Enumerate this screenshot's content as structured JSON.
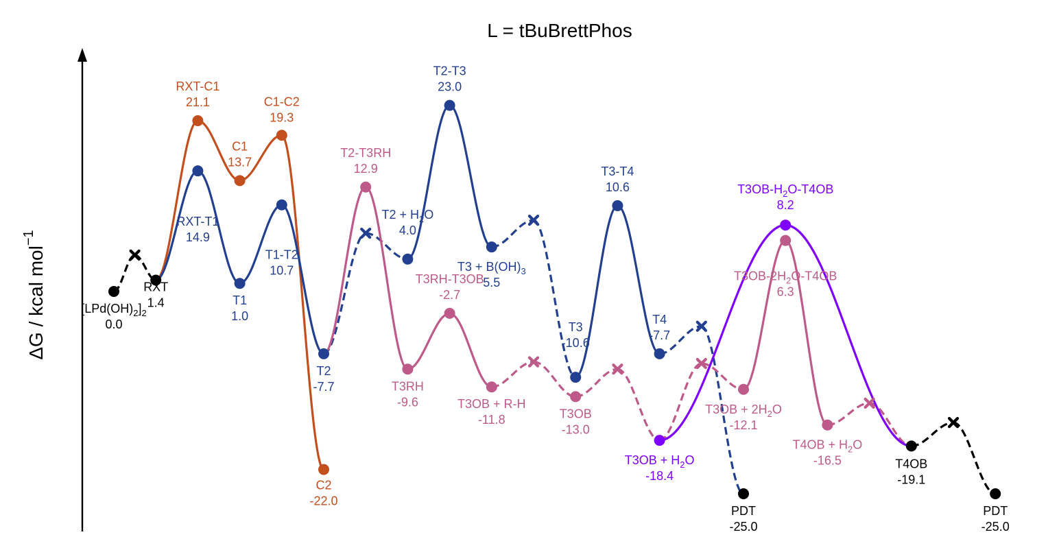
{
  "chart_data": {
    "type": "line",
    "title": "L = tBuBrettPhos",
    "ylabel": "ΔG / kcal mol",
    "ylabel_sup": "−1",
    "xlabel": "",
    "ylim": [
      -27,
      30
    ],
    "grid": false,
    "colors": {
      "black": "#000000",
      "orange": "#c34f1e",
      "blue": "#22408f",
      "pink": "#bd5a89",
      "purple": "#7f00ff"
    },
    "points": [
      {
        "id": "LPdOH",
        "x": 0,
        "y": 0.0,
        "color": "black",
        "marker": "circle",
        "name": "[LPd(OH)",
        "sub": "2",
        "tail": "]",
        "tail_sub": "2",
        "value": "0.0"
      },
      {
        "id": "B1",
        "x": 0.5,
        "y": 4.5,
        "color": "black",
        "marker": "x"
      },
      {
        "id": "RXT",
        "x": 1,
        "y": 1.4,
        "color": "black",
        "marker": "circle",
        "name": "RXT",
        "value": "1.4"
      },
      {
        "id": "RXT-C1",
        "x": 2,
        "y": 21.1,
        "color": "orange",
        "marker": "circle",
        "name": "RXT-C1",
        "value": "21.1"
      },
      {
        "id": "C1",
        "x": 3,
        "y": 13.7,
        "color": "orange",
        "marker": "circle",
        "name": "C1",
        "value": "13.7"
      },
      {
        "id": "C1-C2",
        "x": 4,
        "y": 19.3,
        "color": "orange",
        "marker": "circle",
        "name": "C1-C2",
        "value": "19.3"
      },
      {
        "id": "C2",
        "x": 5,
        "y": -22.0,
        "color": "orange",
        "marker": "circle",
        "name": "C2",
        "value": "-22.0"
      },
      {
        "id": "RXT-T1",
        "x": 2,
        "y": 14.9,
        "color": "blue",
        "marker": "circle",
        "name": "RXT-T1",
        "value": "14.9"
      },
      {
        "id": "T1",
        "x": 3,
        "y": 1.0,
        "color": "blue",
        "marker": "circle",
        "name": "T1",
        "value": "1.0"
      },
      {
        "id": "T1-T2",
        "x": 4,
        "y": 10.7,
        "color": "blue",
        "marker": "circle",
        "name": "T1-T2",
        "value": "10.7"
      },
      {
        "id": "T2",
        "x": 5,
        "y": -7.7,
        "color": "blue",
        "marker": "circle",
        "name": "T2",
        "value": "-7.7"
      },
      {
        "id": "B2",
        "x": 6,
        "y": 7.2,
        "color": "blue",
        "marker": "x"
      },
      {
        "id": "T2H2O",
        "x": 7,
        "y": 4.0,
        "color": "blue",
        "marker": "circle",
        "name": "T2 + H",
        "sub": "2",
        "tail": "O",
        "value": "4.0"
      },
      {
        "id": "T2-T3",
        "x": 8,
        "y": 23.0,
        "color": "blue",
        "marker": "circle",
        "name": "T2-T3",
        "value": "23.0"
      },
      {
        "id": "T3BOH",
        "x": 9,
        "y": 5.5,
        "color": "blue",
        "marker": "circle",
        "name": "T3 + B(OH)",
        "sub": "3",
        "value": "5.5"
      },
      {
        "id": "B3",
        "x": 10,
        "y": 8.8,
        "color": "blue",
        "marker": "x"
      },
      {
        "id": "T3",
        "x": 11,
        "y": -10.6,
        "color": "blue",
        "marker": "circle",
        "name": "T3",
        "value": "-10.6"
      },
      {
        "id": "T3-T4",
        "x": 12,
        "y": 10.6,
        "color": "blue",
        "marker": "circle",
        "name": "T3-T4",
        "value": "10.6"
      },
      {
        "id": "T4",
        "x": 13,
        "y": -7.7,
        "color": "blue",
        "marker": "circle",
        "name": "T4",
        "value": "-7.7"
      },
      {
        "id": "B4",
        "x": 14,
        "y": -4.3,
        "color": "blue",
        "marker": "x"
      },
      {
        "id": "PDT1",
        "x": 15,
        "y": -25.0,
        "color": "black",
        "marker": "circle",
        "name": "PDT",
        "value": "-25.0"
      },
      {
        "id": "T2-T3RH",
        "x": 6,
        "y": 12.9,
        "color": "pink",
        "marker": "circle",
        "name": "T2-T3RH",
        "value": "12.9"
      },
      {
        "id": "T3RH",
        "x": 7,
        "y": -9.6,
        "color": "pink",
        "marker": "circle",
        "name": "T3RH",
        "value": "-9.6"
      },
      {
        "id": "T3RH-T3OB",
        "x": 8,
        "y": -2.7,
        "color": "pink",
        "marker": "circle",
        "name": "T3RH-T3OB",
        "value": "-2.7"
      },
      {
        "id": "T3OBRH",
        "x": 9,
        "y": -11.8,
        "color": "pink",
        "marker": "circle",
        "name": "T3OB + R-H",
        "value": "-11.8"
      },
      {
        "id": "B5",
        "x": 10,
        "y": -8.7,
        "color": "pink",
        "marker": "x"
      },
      {
        "id": "T3OB",
        "x": 11,
        "y": -13.0,
        "color": "pink",
        "marker": "circle",
        "name": "T3OB",
        "value": "-13.0"
      },
      {
        "id": "B6",
        "x": 12,
        "y": -9.6,
        "color": "pink",
        "marker": "x"
      },
      {
        "id": "T3OBH2O",
        "x": 13,
        "y": -18.4,
        "color": "purple",
        "marker": "circle",
        "name": "T3OB + H",
        "sub": "2",
        "tail": "O",
        "value": "-18.4"
      },
      {
        "id": "B7",
        "x": 14,
        "y": -8.9,
        "color": "pink",
        "marker": "x"
      },
      {
        "id": "T3OB2H2O",
        "x": 15,
        "y": -12.1,
        "color": "pink",
        "marker": "circle",
        "name": "T3OB + 2H",
        "sub": "2",
        "tail": "O",
        "value": "-12.1"
      },
      {
        "id": "T3OB-2H2O-T4OB",
        "x": 16,
        "y": 6.3,
        "color": "pink",
        "marker": "circle",
        "name": "T3OB-2H",
        "sub": "2",
        "tail": "O-T4OB",
        "value": "6.3"
      },
      {
        "id": "T3OB-H2O-T4OB",
        "x": 16,
        "y": 8.2,
        "color": "purple",
        "marker": "circle",
        "name": "T3OB-H",
        "sub": "2",
        "tail": "O-T4OB",
        "value": "8.2"
      },
      {
        "id": "T4OBH2O",
        "x": 17,
        "y": -16.5,
        "color": "pink",
        "marker": "circle",
        "name": "T4OB + H",
        "sub": "2",
        "tail": "O",
        "value": "-16.5"
      },
      {
        "id": "B8",
        "x": 18,
        "y": -13.8,
        "color": "pink",
        "marker": "x"
      },
      {
        "id": "T4OB",
        "x": 19,
        "y": -19.1,
        "color": "black",
        "marker": "circle",
        "name": "T4OB",
        "value": "-19.1"
      },
      {
        "id": "B9",
        "x": 20,
        "y": -16.2,
        "color": "black",
        "marker": "x"
      },
      {
        "id": "PDT2",
        "x": 21,
        "y": -25.0,
        "color": "black",
        "marker": "circle",
        "name": "PDT",
        "value": "-25.0"
      }
    ],
    "segments": [
      {
        "from": "LPdOH",
        "to": "B1",
        "color": "black",
        "dash": true
      },
      {
        "from": "B1",
        "to": "RXT",
        "color": "black",
        "dash": true
      },
      {
        "from": "RXT",
        "to": "RXT-C1",
        "color": "orange",
        "dash": false
      },
      {
        "from": "RXT-C1",
        "to": "C1",
        "color": "orange",
        "dash": false
      },
      {
        "from": "C1",
        "to": "C1-C2",
        "color": "orange",
        "dash": false
      },
      {
        "from": "C1-C2",
        "to": "C2",
        "color": "orange",
        "dash": false
      },
      {
        "from": "RXT",
        "to": "RXT-T1",
        "color": "blue",
        "dash": false
      },
      {
        "from": "RXT-T1",
        "to": "T1",
        "color": "blue",
        "dash": false
      },
      {
        "from": "T1",
        "to": "T1-T2",
        "color": "blue",
        "dash": false
      },
      {
        "from": "T1-T2",
        "to": "T2",
        "color": "blue",
        "dash": false
      },
      {
        "from": "T2",
        "to": "B2",
        "color": "blue",
        "dash": true
      },
      {
        "from": "B2",
        "to": "T2H2O",
        "color": "blue",
        "dash": true
      },
      {
        "from": "T2H2O",
        "to": "T2-T3",
        "color": "blue",
        "dash": false
      },
      {
        "from": "T2-T3",
        "to": "T3BOH",
        "color": "blue",
        "dash": false
      },
      {
        "from": "T3BOH",
        "to": "B3",
        "color": "blue",
        "dash": true
      },
      {
        "from": "B3",
        "to": "T3",
        "color": "blue",
        "dash": true
      },
      {
        "from": "T3",
        "to": "T3-T4",
        "color": "blue",
        "dash": false
      },
      {
        "from": "T3-T4",
        "to": "T4",
        "color": "blue",
        "dash": false
      },
      {
        "from": "T4",
        "to": "B4",
        "color": "blue",
        "dash": true
      },
      {
        "from": "B4",
        "to": "PDT1",
        "color": "blue",
        "dash": true
      },
      {
        "from": "T2",
        "to": "T2-T3RH",
        "color": "pink",
        "dash": false
      },
      {
        "from": "T2-T3RH",
        "to": "T3RH",
        "color": "pink",
        "dash": false
      },
      {
        "from": "T3RH",
        "to": "T3RH-T3OB",
        "color": "pink",
        "dash": false
      },
      {
        "from": "T3RH-T3OB",
        "to": "T3OBRH",
        "color": "pink",
        "dash": false
      },
      {
        "from": "T3OBRH",
        "to": "B5",
        "color": "pink",
        "dash": true
      },
      {
        "from": "B5",
        "to": "T3OB",
        "color": "pink",
        "dash": true
      },
      {
        "from": "T3OB",
        "to": "B6",
        "color": "pink",
        "dash": true
      },
      {
        "from": "B6",
        "to": "T3OBH2O",
        "color": "pink",
        "dash": true
      },
      {
        "from": "T3OBH2O",
        "to": "B7",
        "color": "pink",
        "dash": true
      },
      {
        "from": "B7",
        "to": "T3OB2H2O",
        "color": "pink",
        "dash": true
      },
      {
        "from": "T3OB2H2O",
        "to": "T3OB-2H2O-T4OB",
        "color": "pink",
        "dash": false
      },
      {
        "from": "T3OB-2H2O-T4OB",
        "to": "T4OBH2O",
        "color": "pink",
        "dash": false
      },
      {
        "from": "T4OBH2O",
        "to": "B8",
        "color": "pink",
        "dash": true
      },
      {
        "from": "B8",
        "to": "T4OB",
        "color": "pink",
        "dash": true
      },
      {
        "from": "T3OBH2O",
        "to": "T3OB-H2O-T4OB",
        "color": "purple",
        "dash": false
      },
      {
        "from": "T3OB-H2O-T4OB",
        "to": "T4OB",
        "color": "purple",
        "dash": false
      },
      {
        "from": "T4OB",
        "to": "B9",
        "color": "black",
        "dash": true
      },
      {
        "from": "B9",
        "to": "PDT2",
        "color": "black",
        "dash": true
      }
    ]
  }
}
